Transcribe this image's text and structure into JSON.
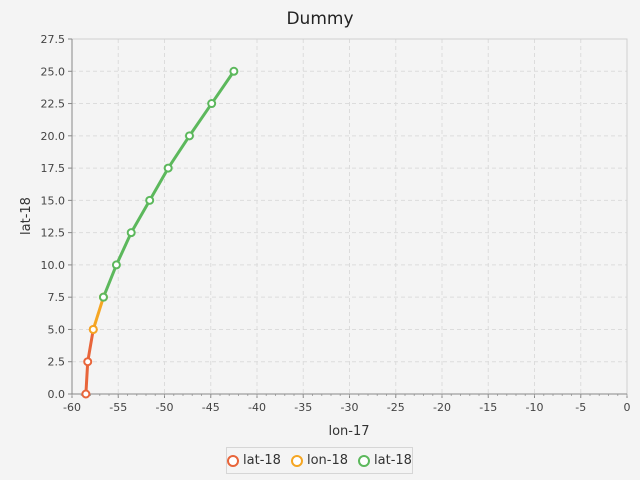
{
  "chart_data": {
    "type": "line",
    "title": "Dummy",
    "xlabel": "lon-17",
    "ylabel": "lat-18",
    "xlim": [
      -60,
      0
    ],
    "ylim": [
      0,
      27.5
    ],
    "x_ticks": [
      "-60",
      "-55",
      "-50",
      "-45",
      "-40",
      "-35",
      "-30",
      "-25",
      "-20",
      "-15",
      "-10",
      "-5",
      "0"
    ],
    "y_ticks": [
      "0.0",
      "2.5",
      "5.0",
      "7.5",
      "10.0",
      "12.5",
      "15.0",
      "17.5",
      "20.0",
      "22.5",
      "25.0",
      "27.5"
    ],
    "grid": true,
    "legend_position": "bottom-center",
    "series": [
      {
        "name": "lat-18",
        "color": "#e8653a",
        "x": [
          -58.5,
          -58.3,
          -57.7
        ],
        "y": [
          0,
          2.5,
          5.0
        ]
      },
      {
        "name": "lon-18",
        "color": "#f5a623",
        "x": [
          -57.7,
          -56.6
        ],
        "y": [
          5.0,
          7.5
        ]
      },
      {
        "name": "lat-18",
        "color": "#5cb85c",
        "x": [
          -56.6,
          -55.2,
          -53.6,
          -51.6,
          -49.6,
          -47.3,
          -44.9,
          -42.5
        ],
        "y": [
          7.5,
          10.0,
          12.5,
          15.0,
          17.5,
          20.0,
          22.5,
          25.0
        ]
      }
    ]
  }
}
